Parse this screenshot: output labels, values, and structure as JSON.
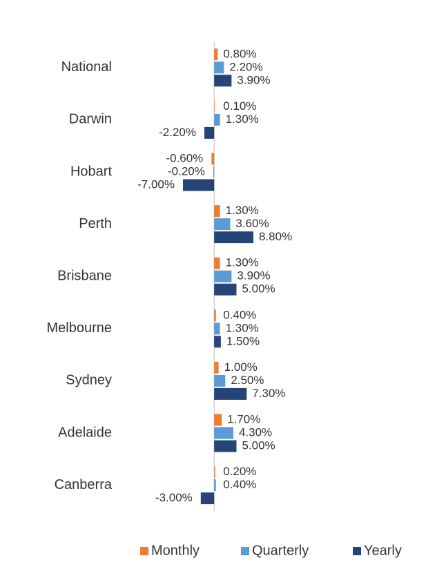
{
  "chart_data": {
    "type": "hbar",
    "categories": [
      "National",
      "Darwin",
      "Hobart",
      "Perth",
      "Brisbane",
      "Melbourne",
      "Sydney",
      "Adelaide",
      "Canberra"
    ],
    "series": [
      {
        "name": "Monthly",
        "color": "#ed7d31",
        "values": [
          0.8,
          0.1,
          -0.6,
          1.3,
          1.3,
          0.4,
          1.0,
          1.7,
          0.2
        ],
        "value_labels": [
          "0.80%",
          "0.10%",
          "-0.60%",
          "1.30%",
          "1.30%",
          "0.40%",
          "1.00%",
          "1.70%",
          "0.20%"
        ]
      },
      {
        "name": "Quarterly",
        "color": "#5b9bd5",
        "values": [
          2.2,
          1.3,
          -0.2,
          3.6,
          3.9,
          1.3,
          2.5,
          4.3,
          0.4
        ],
        "value_labels": [
          "2.20%",
          "1.30%",
          "-0.20%",
          "3.60%",
          "3.90%",
          "1.30%",
          "2.50%",
          "4.30%",
          "0.40%"
        ]
      },
      {
        "name": "Yearly",
        "color": "#264478",
        "values": [
          3.9,
          -2.2,
          -7.0,
          8.8,
          5.0,
          1.5,
          7.3,
          5.0,
          -3.0
        ],
        "value_labels": [
          "3.90%",
          "-2.20%",
          "-7.00%",
          "8.80%",
          "5.00%",
          "1.50%",
          "7.30%",
          "5.00%",
          "-3.00%"
        ]
      }
    ],
    "legend": "bottom"
  }
}
